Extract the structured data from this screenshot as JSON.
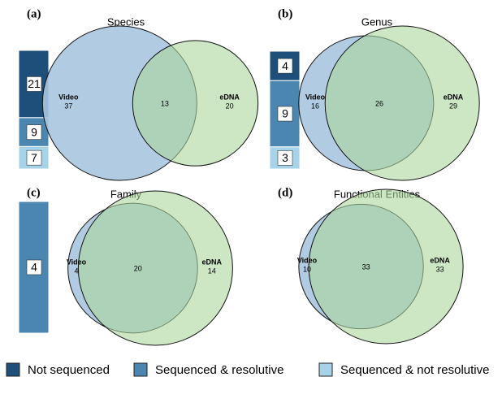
{
  "chart_data": [
    {
      "type": "venn",
      "panel_label": "(a)",
      "title": "Species",
      "sets": [
        {
          "name": "Video",
          "value": 37,
          "color": "#a9c6df"
        },
        {
          "name": "eDNA",
          "value": 20,
          "color": "#acd59c"
        }
      ],
      "overlap": 13,
      "bar_values": [
        21,
        9,
        7
      ]
    },
    {
      "type": "venn",
      "panel_label": "(b)",
      "title": "Genus",
      "sets": [
        {
          "name": "Video",
          "value": 16,
          "color": "#a9c6df"
        },
        {
          "name": "eDNA",
          "value": 29,
          "color": "#acd59c"
        }
      ],
      "overlap": 26,
      "bar_values": [
        4,
        9,
        3
      ]
    },
    {
      "type": "venn",
      "panel_label": "(c)",
      "title": "Family",
      "sets": [
        {
          "name": "Video",
          "value": 4,
          "color": "#a9c6df"
        },
        {
          "name": "eDNA",
          "value": 14,
          "color": "#acd59c"
        }
      ],
      "overlap": 20,
      "bar_values": [
        null,
        4,
        null
      ]
    },
    {
      "type": "venn",
      "panel_label": "(d)",
      "title": "Functional Entities",
      "sets": [
        {
          "name": "Video",
          "value": 10,
          "color": "#a9c6df"
        },
        {
          "name": "eDNA",
          "value": 33,
          "color": "#acd59c"
        }
      ],
      "overlap": 33,
      "bar_values": null
    }
  ],
  "legend": [
    {
      "name": "Not sequenced",
      "color": "#1d4f7a"
    },
    {
      "name": "Sequenced & resolutive",
      "color": "#4a86b0"
    },
    {
      "name": "Sequenced & not resolutive",
      "color": "#a6d3e8"
    }
  ]
}
